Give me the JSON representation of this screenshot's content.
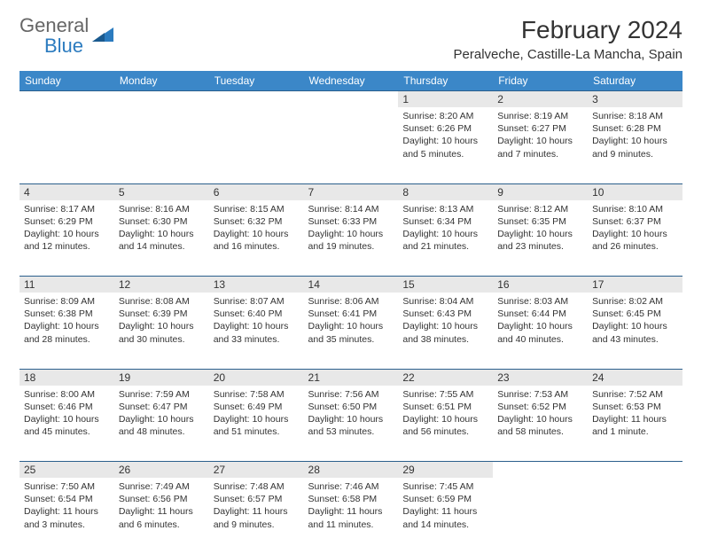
{
  "logo": {
    "part1": "General",
    "part2": "Blue"
  },
  "title": "February 2024",
  "location": "Peralveche, Castille-La Mancha, Spain",
  "colors": {
    "header_bg": "#3b87c8",
    "border": "#2b5f8c",
    "daynum_bg": "#e8e8e8",
    "logo_blue": "#2b7bbf"
  },
  "dayNames": [
    "Sunday",
    "Monday",
    "Tuesday",
    "Wednesday",
    "Thursday",
    "Friday",
    "Saturday"
  ],
  "weeks": [
    [
      {
        "n": "",
        "sr": "",
        "ss": "",
        "dl": ""
      },
      {
        "n": "",
        "sr": "",
        "ss": "",
        "dl": ""
      },
      {
        "n": "",
        "sr": "",
        "ss": "",
        "dl": ""
      },
      {
        "n": "",
        "sr": "",
        "ss": "",
        "dl": ""
      },
      {
        "n": "1",
        "sr": "Sunrise: 8:20 AM",
        "ss": "Sunset: 6:26 PM",
        "dl": "Daylight: 10 hours and 5 minutes."
      },
      {
        "n": "2",
        "sr": "Sunrise: 8:19 AM",
        "ss": "Sunset: 6:27 PM",
        "dl": "Daylight: 10 hours and 7 minutes."
      },
      {
        "n": "3",
        "sr": "Sunrise: 8:18 AM",
        "ss": "Sunset: 6:28 PM",
        "dl": "Daylight: 10 hours and 9 minutes."
      }
    ],
    [
      {
        "n": "4",
        "sr": "Sunrise: 8:17 AM",
        "ss": "Sunset: 6:29 PM",
        "dl": "Daylight: 10 hours and 12 minutes."
      },
      {
        "n": "5",
        "sr": "Sunrise: 8:16 AM",
        "ss": "Sunset: 6:30 PM",
        "dl": "Daylight: 10 hours and 14 minutes."
      },
      {
        "n": "6",
        "sr": "Sunrise: 8:15 AM",
        "ss": "Sunset: 6:32 PM",
        "dl": "Daylight: 10 hours and 16 minutes."
      },
      {
        "n": "7",
        "sr": "Sunrise: 8:14 AM",
        "ss": "Sunset: 6:33 PM",
        "dl": "Daylight: 10 hours and 19 minutes."
      },
      {
        "n": "8",
        "sr": "Sunrise: 8:13 AM",
        "ss": "Sunset: 6:34 PM",
        "dl": "Daylight: 10 hours and 21 minutes."
      },
      {
        "n": "9",
        "sr": "Sunrise: 8:12 AM",
        "ss": "Sunset: 6:35 PM",
        "dl": "Daylight: 10 hours and 23 minutes."
      },
      {
        "n": "10",
        "sr": "Sunrise: 8:10 AM",
        "ss": "Sunset: 6:37 PM",
        "dl": "Daylight: 10 hours and 26 minutes."
      }
    ],
    [
      {
        "n": "11",
        "sr": "Sunrise: 8:09 AM",
        "ss": "Sunset: 6:38 PM",
        "dl": "Daylight: 10 hours and 28 minutes."
      },
      {
        "n": "12",
        "sr": "Sunrise: 8:08 AM",
        "ss": "Sunset: 6:39 PM",
        "dl": "Daylight: 10 hours and 30 minutes."
      },
      {
        "n": "13",
        "sr": "Sunrise: 8:07 AM",
        "ss": "Sunset: 6:40 PM",
        "dl": "Daylight: 10 hours and 33 minutes."
      },
      {
        "n": "14",
        "sr": "Sunrise: 8:06 AM",
        "ss": "Sunset: 6:41 PM",
        "dl": "Daylight: 10 hours and 35 minutes."
      },
      {
        "n": "15",
        "sr": "Sunrise: 8:04 AM",
        "ss": "Sunset: 6:43 PM",
        "dl": "Daylight: 10 hours and 38 minutes."
      },
      {
        "n": "16",
        "sr": "Sunrise: 8:03 AM",
        "ss": "Sunset: 6:44 PM",
        "dl": "Daylight: 10 hours and 40 minutes."
      },
      {
        "n": "17",
        "sr": "Sunrise: 8:02 AM",
        "ss": "Sunset: 6:45 PM",
        "dl": "Daylight: 10 hours and 43 minutes."
      }
    ],
    [
      {
        "n": "18",
        "sr": "Sunrise: 8:00 AM",
        "ss": "Sunset: 6:46 PM",
        "dl": "Daylight: 10 hours and 45 minutes."
      },
      {
        "n": "19",
        "sr": "Sunrise: 7:59 AM",
        "ss": "Sunset: 6:47 PM",
        "dl": "Daylight: 10 hours and 48 minutes."
      },
      {
        "n": "20",
        "sr": "Sunrise: 7:58 AM",
        "ss": "Sunset: 6:49 PM",
        "dl": "Daylight: 10 hours and 51 minutes."
      },
      {
        "n": "21",
        "sr": "Sunrise: 7:56 AM",
        "ss": "Sunset: 6:50 PM",
        "dl": "Daylight: 10 hours and 53 minutes."
      },
      {
        "n": "22",
        "sr": "Sunrise: 7:55 AM",
        "ss": "Sunset: 6:51 PM",
        "dl": "Daylight: 10 hours and 56 minutes."
      },
      {
        "n": "23",
        "sr": "Sunrise: 7:53 AM",
        "ss": "Sunset: 6:52 PM",
        "dl": "Daylight: 10 hours and 58 minutes."
      },
      {
        "n": "24",
        "sr": "Sunrise: 7:52 AM",
        "ss": "Sunset: 6:53 PM",
        "dl": "Daylight: 11 hours and 1 minute."
      }
    ],
    [
      {
        "n": "25",
        "sr": "Sunrise: 7:50 AM",
        "ss": "Sunset: 6:54 PM",
        "dl": "Daylight: 11 hours and 3 minutes."
      },
      {
        "n": "26",
        "sr": "Sunrise: 7:49 AM",
        "ss": "Sunset: 6:56 PM",
        "dl": "Daylight: 11 hours and 6 minutes."
      },
      {
        "n": "27",
        "sr": "Sunrise: 7:48 AM",
        "ss": "Sunset: 6:57 PM",
        "dl": "Daylight: 11 hours and 9 minutes."
      },
      {
        "n": "28",
        "sr": "Sunrise: 7:46 AM",
        "ss": "Sunset: 6:58 PM",
        "dl": "Daylight: 11 hours and 11 minutes."
      },
      {
        "n": "29",
        "sr": "Sunrise: 7:45 AM",
        "ss": "Sunset: 6:59 PM",
        "dl": "Daylight: 11 hours and 14 minutes."
      },
      {
        "n": "",
        "sr": "",
        "ss": "",
        "dl": ""
      },
      {
        "n": "",
        "sr": "",
        "ss": "",
        "dl": ""
      }
    ]
  ]
}
